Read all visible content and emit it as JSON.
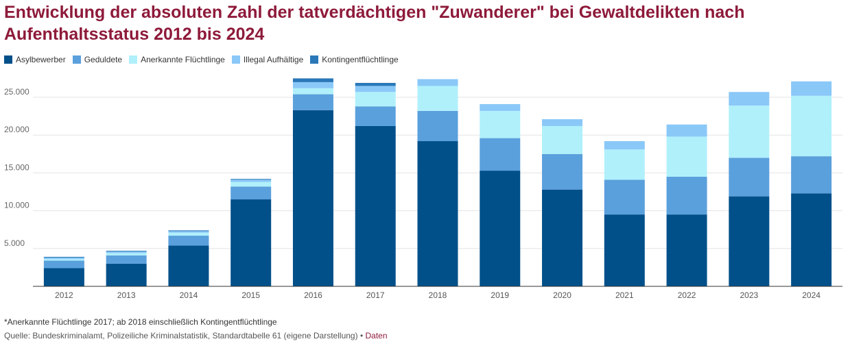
{
  "title": "Entwicklung der absoluten Zahl der tatverdächtigen \"Zuwanderer\" bei Gewaltdelikten nach Aufenthaltsstatus 2012 bis 2024",
  "legend": [
    {
      "label": "Asylbewerber",
      "color": "#02508a"
    },
    {
      "label": "Geduldete",
      "color": "#5aa0dc"
    },
    {
      "label": "Anerkannte Flüchtlinge",
      "color": "#b0f0fb"
    },
    {
      "label": "Illegal Aufhältige",
      "color": "#8ac8f8"
    },
    {
      "label": "Kontingentflüchtlinge",
      "color": "#2a78b8"
    }
  ],
  "footnote": "*Anerkannte Flüchtlinge 2017; ab 2018 einschließlich Kontingentflüchtlinge",
  "source": {
    "text": "Quelle: Bundeskriminalamt, Polizeiliche Kriminalstatistik, Standardtabelle 61 (eigene Darstellung)",
    "separator": "•",
    "link": "Daten"
  },
  "chart_data": {
    "type": "bar",
    "stacked": true,
    "title": "Entwicklung der absoluten Zahl der tatverdächtigen \"Zuwanderer\" bei Gewaltdelikten nach Aufenthaltsstatus 2012 bis 2024",
    "xlabel": "",
    "ylabel": "",
    "ylim": [
      0,
      27500
    ],
    "yticks": [
      5000,
      10000,
      15000,
      20000,
      25000
    ],
    "ytick_labels": [
      "5.000",
      "10.000",
      "15.000",
      "20.000",
      "25.000"
    ],
    "grid": true,
    "legend_position": "top-left",
    "categories": [
      "2012",
      "2013",
      "2014",
      "2015",
      "2016",
      "2017",
      "2018",
      "2019",
      "2020",
      "2021",
      "2022",
      "2023",
      "2024"
    ],
    "series": [
      {
        "name": "Asylbewerber",
        "color": "#02508a",
        "values": [
          2400,
          3000,
          5400,
          11500,
          23300,
          21200,
          19200,
          15300,
          12800,
          9500,
          9500,
          11900,
          12300
        ]
      },
      {
        "name": "Geduldete",
        "color": "#5aa0dc",
        "values": [
          1000,
          1100,
          1300,
          1700,
          2100,
          2600,
          4000,
          4300,
          4700,
          4600,
          5000,
          5100,
          4900
        ]
      },
      {
        "name": "Anerkannte Flüchtlinge",
        "color": "#b0f0fb",
        "values": [
          200,
          300,
          400,
          600,
          800,
          1900,
          3300,
          3600,
          3700,
          4000,
          5300,
          6900,
          8000
        ]
      },
      {
        "name": "Illegal Aufhältige",
        "color": "#8ac8f8",
        "values": [
          200,
          200,
          200,
          300,
          800,
          800,
          900,
          900,
          900,
          1100,
          1600,
          1800,
          1900
        ]
      },
      {
        "name": "Kontingentflüchtlinge",
        "color": "#2a78b8",
        "values": [
          100,
          100,
          100,
          100,
          500,
          400,
          0,
          0,
          0,
          0,
          0,
          0,
          0
        ]
      }
    ]
  }
}
